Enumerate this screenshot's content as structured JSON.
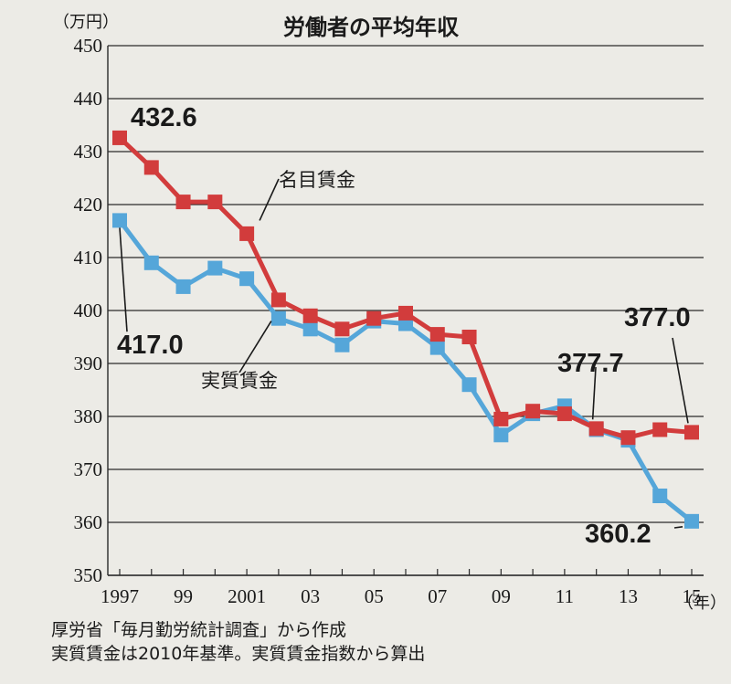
{
  "chart_data": {
    "type": "line",
    "title": "労働者の平均年収",
    "y_unit": "（万円）",
    "x_unit": "（年）",
    "ylim": [
      350,
      450
    ],
    "yticks": [
      450,
      440,
      430,
      420,
      410,
      400,
      390,
      380,
      370,
      360,
      350
    ],
    "x": [
      1997,
      1998,
      1999,
      2000,
      2001,
      2002,
      2003,
      2004,
      2005,
      2006,
      2007,
      2008,
      2009,
      2010,
      2011,
      2012,
      2013,
      2014,
      2015
    ],
    "xtick_labels": [
      {
        "x": 1997,
        "label": "1997"
      },
      {
        "x": 1999,
        "label": "99"
      },
      {
        "x": 2001,
        "label": "2001"
      },
      {
        "x": 2003,
        "label": "03"
      },
      {
        "x": 2005,
        "label": "05"
      },
      {
        "x": 2007,
        "label": "07"
      },
      {
        "x": 2009,
        "label": "09"
      },
      {
        "x": 2011,
        "label": "11"
      },
      {
        "x": 2013,
        "label": "13"
      },
      {
        "x": 2015,
        "label": "15"
      }
    ],
    "grid": true,
    "series": [
      {
        "name": "実質賃金",
        "color": "#55a6d9",
        "values": [
          417.0,
          409.0,
          404.5,
          408.0,
          406.0,
          398.5,
          396.5,
          393.5,
          398.0,
          397.5,
          393.0,
          386.0,
          376.5,
          380.5,
          382.0,
          377.5,
          375.5,
          365.0,
          360.2
        ]
      },
      {
        "name": "名目賃金",
        "color": "#d23c3c",
        "values": [
          432.6,
          427.0,
          420.5,
          420.5,
          414.5,
          402.0,
          399.0,
          396.5,
          398.5,
          399.5,
          395.5,
          395.0,
          379.5,
          381.0,
          380.5,
          377.7,
          376.0,
          377.5,
          377.0
        ]
      }
    ],
    "annotations": [
      {
        "text": "432.6",
        "x": 1997,
        "y": 432.6
      },
      {
        "text": "417.0",
        "x": 1997,
        "y": 417.0
      },
      {
        "text": "377.7",
        "x": 2012,
        "y": 377.7
      },
      {
        "text": "377.0",
        "x": 2015,
        "y": 377.0
      },
      {
        "text": "360.2",
        "x": 2015,
        "y": 360.2
      }
    ]
  },
  "notes": [
    "厚労省「毎月勤労統計調査」から作成",
    "実質賃金は2010年基準。実質賃金指数から算出"
  ]
}
